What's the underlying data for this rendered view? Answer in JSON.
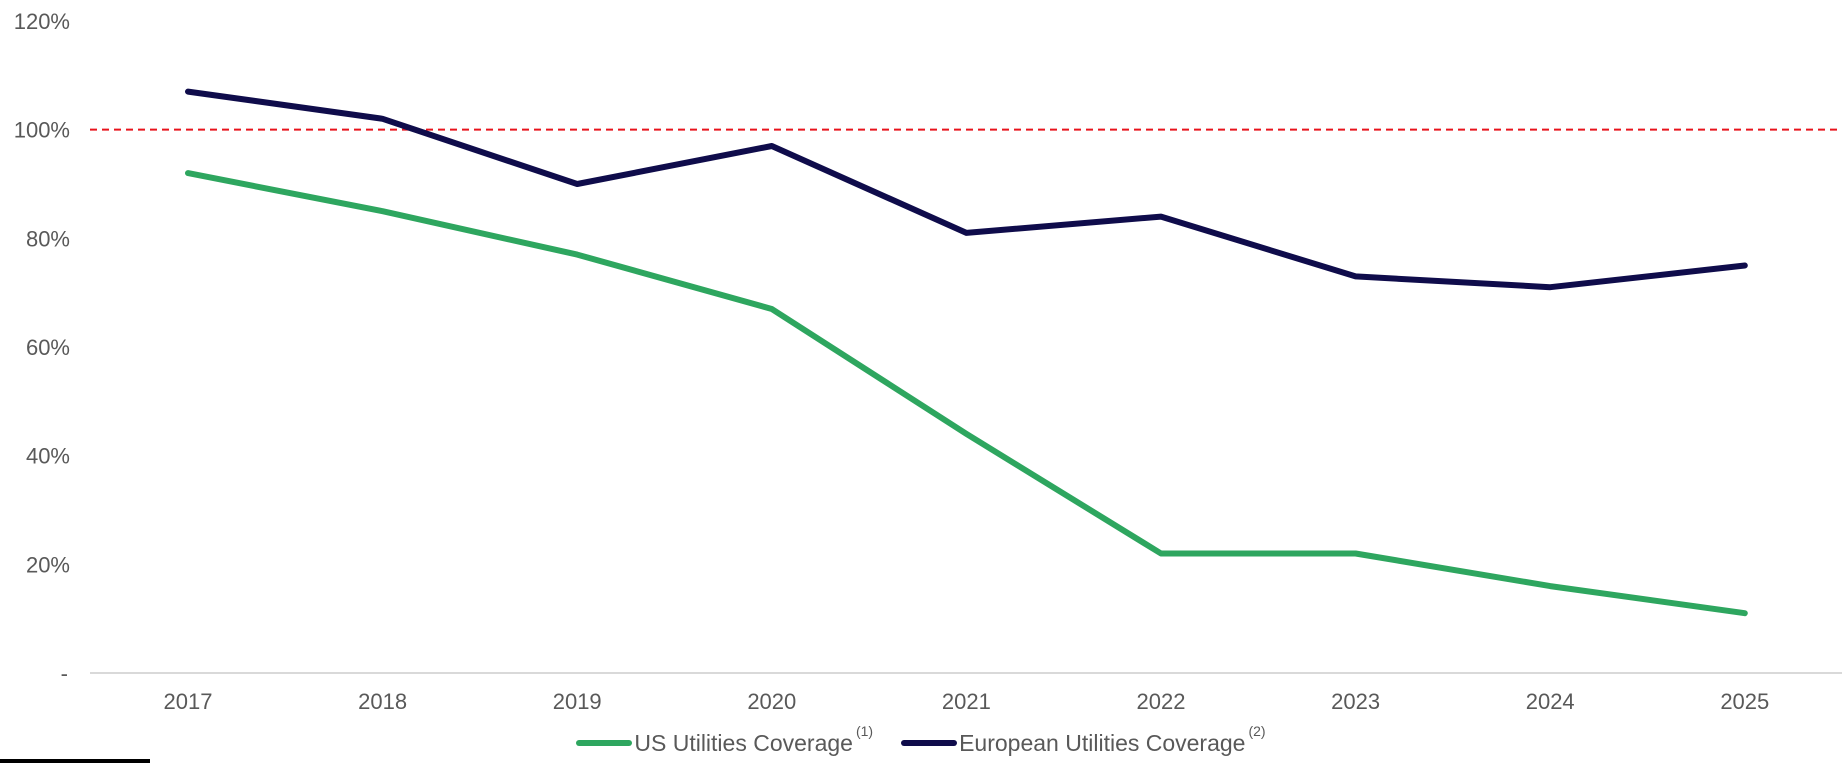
{
  "chart_data": {
    "type": "line",
    "title": "",
    "xlabel": "",
    "ylabel": "",
    "x": [
      "2017",
      "2018",
      "2019",
      "2020",
      "2021",
      "2022",
      "2023",
      "2024",
      "2025"
    ],
    "ylim": [
      0,
      120
    ],
    "yticks": [
      0,
      20,
      40,
      60,
      80,
      100,
      120
    ],
    "ytick_labels": [
      "-",
      "20%",
      "40%",
      "60%",
      "80%",
      "100%",
      "120%"
    ],
    "reference_line": {
      "y": 100,
      "style": "dashed",
      "color": "#e8141c"
    },
    "grid": false,
    "legend_position": "bottom-center",
    "series": [
      {
        "name": "US Utilities Coverage",
        "footnote": "(1)",
        "color": "#2ea65f",
        "values": [
          92,
          85,
          77,
          67,
          44,
          22,
          22,
          16,
          11
        ]
      },
      {
        "name": "European Utilities Coverage",
        "footnote": "(2)",
        "color": "#0f0c4b",
        "values": [
          107,
          102,
          90,
          97,
          81,
          84,
          73,
          71,
          75
        ]
      }
    ]
  }
}
